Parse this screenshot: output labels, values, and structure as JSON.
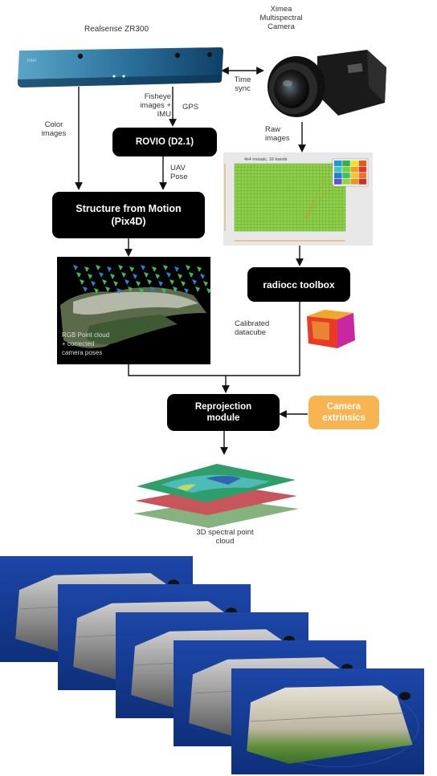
{
  "devices": {
    "realsense": {
      "title": "Realsense ZR300",
      "logo": "intel"
    },
    "ximea": {
      "title_lines": [
        "Ximea",
        "Multispectral",
        "Camera"
      ]
    }
  },
  "labels": {
    "time_sync": [
      "Time",
      "sync"
    ],
    "fisheye": [
      "Fisheye",
      "images +",
      "IMU"
    ],
    "gps": "GPS",
    "color_images": [
      "Color",
      "images"
    ],
    "raw_images": [
      "Raw",
      "images"
    ],
    "uav_pose": [
      "UAV",
      "Pose"
    ],
    "calibrated": [
      "Calibrated",
      "datacube"
    ],
    "output": [
      "3D spectral point",
      "cloud"
    ]
  },
  "boxes": {
    "rovio": "ROVIO (D2.1)",
    "sfm": [
      "Structure from Motion",
      "(Pix4D)"
    ],
    "radiocc": "radiocc toolbox",
    "reprojection": [
      "Reprojection",
      "module"
    ],
    "extrinsics": [
      "Camera",
      "extrinsics"
    ]
  },
  "mosaic": {
    "title": "4x4 mosaic, 16 bands",
    "cell_colors": [
      "#1a9cd8",
      "#2fb34a",
      "#f0e129",
      "#e85a1d",
      "#44c2c0",
      "#7ccf3a",
      "#e7a023",
      "#d63a2a",
      "#2a79cf",
      "#3fbf6b",
      "#f1c531",
      "#ec7426",
      "#5a58c8",
      "#94d33c",
      "#e89327",
      "#c7302b"
    ]
  },
  "pointcloud": {
    "caption_lines": [
      "RGB Point cloud",
      "+ corrected",
      "camera poses"
    ]
  },
  "datacube": {
    "face_colors": [
      "#e63b25",
      "#f4a62a",
      "#c9279f"
    ]
  },
  "layers": {
    "colors": [
      "#2e9e6b",
      "#c9555c",
      "#86b27f"
    ]
  },
  "photos": {
    "count": 5,
    "colors": {
      "sky": "#1c46a8",
      "terrain": "#a8a8a8",
      "grass": "#5f8f3a"
    }
  }
}
